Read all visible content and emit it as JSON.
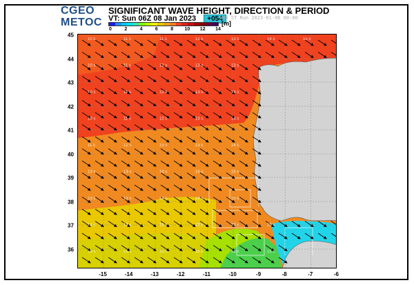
{
  "header": {
    "logo_line1": "CGEO",
    "logo_line2": "METOC",
    "title": "SIGNIFICANT WAVE HEIGHT, DIRECTION & PERIOD",
    "valid_time": "VT: Sun 06Z 08 Jan 2023",
    "lead_time": "+054",
    "run_info": "WW3 ST Run 2023-01-06 00:00"
  },
  "scale": {
    "unit": "[m]",
    "ticks": [
      "0",
      "2",
      "4",
      "6",
      "8",
      "10",
      "12",
      "14"
    ],
    "colors": [
      "#1a1aff",
      "#1e90ff",
      "#00c8ff",
      "#00e5ee",
      "#40e0a0",
      "#7fff00",
      "#c8f000",
      "#f0f000",
      "#e6c800",
      "#f0a020",
      "#f08020",
      "#f04020",
      "#e02020",
      "#c81010",
      "#a00000",
      "#800000",
      "#600040",
      "#400060"
    ]
  },
  "map": {
    "lat_labels": [
      "45",
      "44",
      "43",
      "42",
      "41",
      "40",
      "39",
      "38",
      "37",
      "36"
    ],
    "lon_labels": [
      "-15",
      "-14",
      "-13",
      "-12",
      "-11",
      "-10",
      "-9",
      "-8",
      "-7",
      "-6"
    ],
    "land_color": "#d3d3d3",
    "arrow_direction": "north-west to south-east",
    "period_values": {
      "rows": [
        [
          "10 s",
          "11 s",
          "11 s",
          "12 s",
          "13 s",
          "14 s",
          "15 s",
          "16 s",
          "17 s"
        ],
        [
          "10 s",
          "11 s",
          "12 s",
          "13 s",
          "13 s",
          "14 s",
          "15 s",
          "16 s",
          "16 s"
        ],
        [
          "10 s",
          "11 s",
          "12 s",
          "13 s",
          "14 s",
          "15 s",
          "15 s",
          "16 s",
          "16 s"
        ],
        [
          "10 s",
          "11 s",
          "12 s",
          "13 s",
          "14 s",
          "14 s",
          "15 s",
          "15 s"
        ],
        [
          "11 s",
          "12 s",
          "13 s",
          "13 s",
          "14 s",
          "14 s",
          "15 s"
        ],
        [
          "13 s",
          "13 s",
          "14 s",
          "14 s",
          "15 s",
          "15 s"
        ],
        [
          "13 s",
          "13 s",
          "14 s",
          "14 s",
          "15 s",
          "15 s"
        ],
        [
          "14 s",
          "14 s",
          "14 s",
          "15 s",
          "15 s",
          "15 s"
        ],
        [
          "15 s",
          "15 s",
          "15 s",
          "15 s",
          "15 s",
          "15 s",
          "14 s",
          "13 s"
        ]
      ]
    }
  }
}
